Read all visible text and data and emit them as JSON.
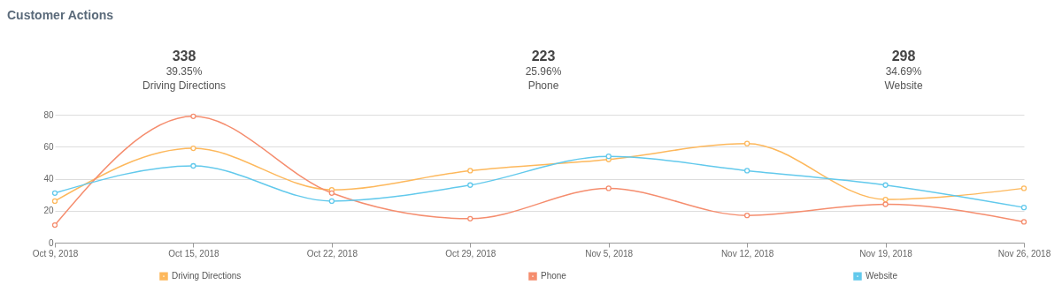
{
  "chart_data": {
    "type": "line",
    "title": "Customer Actions",
    "categories": [
      "Oct 9, 2018",
      "Oct 15, 2018",
      "Oct 22, 2018",
      "Oct 29, 2018",
      "Nov 5, 2018",
      "Nov 12, 2018",
      "Nov 19, 2018",
      "Nov 26, 2018"
    ],
    "series": [
      {
        "name": "Driving Directions",
        "color": "#fdb85c",
        "values": [
          26,
          59,
          33,
          45,
          52,
          62,
          27,
          34
        ]
      },
      {
        "name": "Phone",
        "color": "#f58d6e",
        "values": [
          11,
          79,
          31,
          15,
          34,
          17,
          24,
          13
        ]
      },
      {
        "name": "Website",
        "color": "#62c9ec",
        "values": [
          31,
          48,
          26,
          36,
          54,
          45,
          36,
          22
        ]
      }
    ],
    "annotations": [
      "338",
      "39.35%",
      "Driving Directions",
      "223",
      "25.96%",
      "Phone",
      "298",
      "34.69%",
      "Website"
    ],
    "ylim": [
      0,
      80
    ],
    "yticks": [
      0,
      20,
      40,
      60,
      80
    ],
    "grid": "y",
    "legend": "bottom",
    "marker": "circle",
    "line_style": "solid"
  }
}
